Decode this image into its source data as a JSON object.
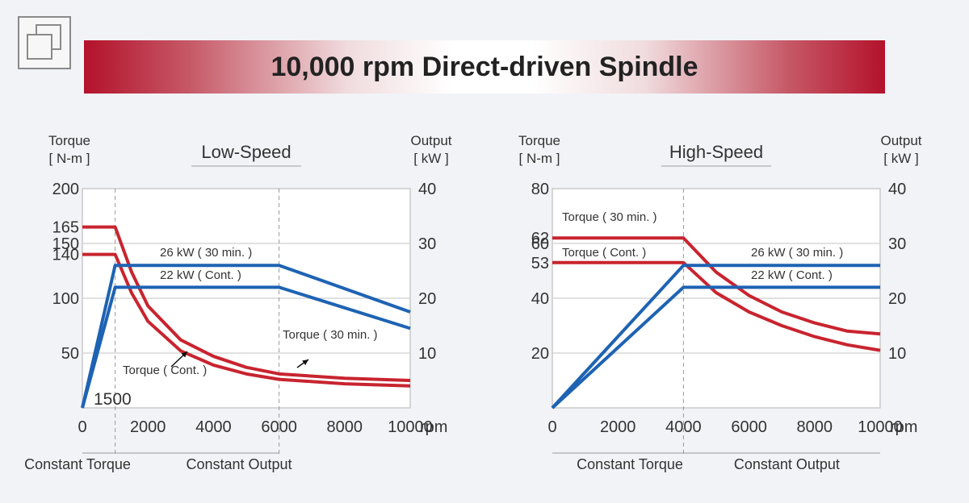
{
  "title": "10,000 rpm Direct-driven Spindle",
  "icons": {
    "corner": "copy-window-icon"
  },
  "colors": {
    "torque": "#c8242f",
    "output": "#1e63b3",
    "banner": "#b3122b"
  },
  "chart_data": [
    {
      "type": "line",
      "title": "Low-Speed",
      "left_axis": {
        "label": [
          "Torque",
          "[ N-m ]"
        ],
        "range": [
          0,
          200
        ],
        "ticks": [
          50,
          100,
          140,
          150,
          165,
          200
        ]
      },
      "right_axis": {
        "label": [
          "Output",
          "[ kW ]"
        ],
        "range": [
          0,
          40
        ],
        "ticks": [
          10,
          20,
          30,
          40
        ]
      },
      "x_axis": {
        "range": [
          0,
          10000
        ],
        "ticks": [
          0,
          2000,
          4000,
          6000,
          8000,
          10000
        ],
        "tick_labels": [
          "0",
          "2000",
          "4000",
          "6000",
          "8000",
          "10000"
        ],
        "unit": "rpm"
      },
      "grid": true,
      "annotation_labels": [
        "1500"
      ],
      "region_labels": [
        "Constant Torque",
        "Constant Output"
      ],
      "region_x": [
        0,
        1000,
        6000
      ],
      "vlines": [
        1000,
        6000
      ],
      "series": [
        {
          "name": "Torque ( 30 min. )",
          "axis": "left",
          "color": "torque",
          "x": [
            0,
            1000,
            1500,
            2000,
            3000,
            4000,
            5000,
            6000,
            8000,
            10000
          ],
          "y": [
            165,
            165,
            124,
            93,
            62,
            47,
            37,
            31,
            27,
            25
          ]
        },
        {
          "name": "Torque ( Cont. )",
          "axis": "left",
          "color": "torque",
          "x": [
            0,
            1000,
            1500,
            2000,
            3000,
            4000,
            5000,
            6000,
            8000,
            10000
          ],
          "y": [
            140,
            140,
            105,
            79,
            52,
            39,
            31,
            26,
            22,
            20
          ]
        },
        {
          "name": "26 kW ( 30 min. )",
          "axis": "right",
          "color": "output",
          "x": [
            0,
            1000,
            6000,
            10000
          ],
          "y": [
            0,
            26,
            26,
            17.5
          ]
        },
        {
          "name": "22 kW ( Cont. )",
          "axis": "right",
          "color": "output",
          "x": [
            0,
            1000,
            6000,
            10000
          ],
          "y": [
            0,
            22,
            22,
            14.5
          ]
        }
      ]
    },
    {
      "type": "line",
      "title": "High-Speed",
      "left_axis": {
        "label": [
          "Torque",
          "[ N-m ]"
        ],
        "range": [
          0,
          80
        ],
        "ticks": [
          20,
          40,
          53,
          60,
          62,
          80
        ]
      },
      "right_axis": {
        "label": [
          "Output",
          "[ kW ]"
        ],
        "range": [
          0,
          40
        ],
        "ticks": [
          10,
          20,
          30,
          40
        ]
      },
      "x_axis": {
        "range": [
          0,
          10000
        ],
        "ticks": [
          0,
          2000,
          4000,
          6000,
          8000,
          10000
        ],
        "tick_labels": [
          "0",
          "2000",
          "4000",
          "6000",
          "8000",
          "10000"
        ],
        "unit": "rpm"
      },
      "grid": true,
      "annotation_labels": [],
      "region_labels": [
        "Constant Torque",
        "Constant Output"
      ],
      "region_x": [
        0,
        4000,
        10000
      ],
      "vlines": [
        4000
      ],
      "series": [
        {
          "name": "Torque ( 30 min. )",
          "axis": "left",
          "color": "torque",
          "x": [
            0,
            4000,
            5000,
            6000,
            7000,
            8000,
            9000,
            10000
          ],
          "y": [
            62,
            62,
            49.5,
            41,
            35,
            31,
            28,
            27
          ]
        },
        {
          "name": "Torque ( Cont. )",
          "axis": "left",
          "color": "torque",
          "x": [
            0,
            4000,
            5000,
            6000,
            7000,
            8000,
            9000,
            10000
          ],
          "y": [
            53,
            53,
            42,
            35,
            30,
            26,
            23,
            21
          ]
        },
        {
          "name": "26 kW ( 30 min. )",
          "axis": "right",
          "color": "output",
          "x": [
            0,
            4000,
            10000
          ],
          "y": [
            0,
            26,
            26
          ]
        },
        {
          "name": "22 kW ( Cont. )",
          "axis": "right",
          "color": "output",
          "x": [
            0,
            4000,
            10000
          ],
          "y": [
            0,
            22,
            22
          ]
        }
      ]
    }
  ]
}
